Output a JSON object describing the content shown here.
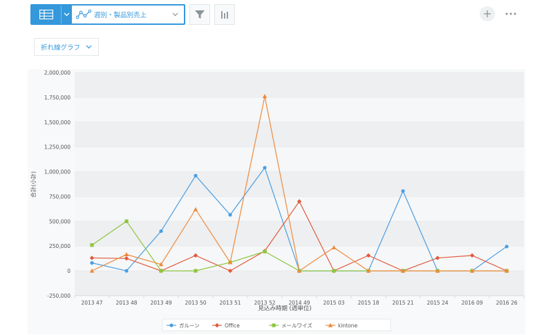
{
  "toolbar": {
    "report_name": "週別・製品別売上",
    "view_icon": "table-icon",
    "graph_icon": "line-graph-icon",
    "filter_icon": "filter-icon",
    "chart_icon": "bar-chart-icon"
  },
  "actions": {
    "add_icon": "plus-icon",
    "more_icon": "more-icon"
  },
  "chart_type_label": "折れ線グラフ",
  "chart_data": {
    "type": "line",
    "categories": [
      "2013 47",
      "2013 48",
      "2013 49",
      "2013 50",
      "2013 51",
      "2013 52",
      "2014 49",
      "2015 03",
      "2015 18",
      "2015 21",
      "2015 24",
      "2016 09",
      "2016 26"
    ],
    "xlabel": "見込み時期 (週単位)",
    "ylabel": "合計(小計)",
    "ylim": [
      -250000,
      2000000
    ],
    "yticks": [
      -250000,
      0,
      250000,
      500000,
      750000,
      1000000,
      1250000,
      1500000,
      1750000,
      2000000
    ],
    "ytick_labels": [
      "-250,000",
      "0",
      "250,000",
      "500,000",
      "750,000",
      "1,000,000",
      "1,250,000",
      "1,500,000",
      "1,750,000",
      "2,000,000"
    ],
    "grid": true,
    "legend_position": "bottom",
    "series": [
      {
        "name": "ガルーン",
        "color": "#4a9ee0",
        "marker": "circle",
        "values": [
          80000,
          0,
          400000,
          960000,
          565000,
          1040000,
          0,
          0,
          0,
          805000,
          0,
          0,
          245000
        ]
      },
      {
        "name": "Office",
        "color": "#e05a3c",
        "marker": "diamond",
        "values": [
          130000,
          125000,
          0,
          155000,
          0,
          200000,
          700000,
          0,
          155000,
          0,
          130000,
          155000,
          0
        ]
      },
      {
        "name": "メールワイズ",
        "color": "#8cc63f",
        "marker": "square",
        "values": [
          260000,
          500000,
          0,
          0,
          85000,
          195000,
          0,
          0,
          0,
          0,
          0,
          0,
          0
        ]
      },
      {
        "name": "kintone",
        "color": "#ee8a3c",
        "marker": "triangle",
        "values": [
          0,
          165000,
          65000,
          620000,
          85000,
          1760000,
          0,
          235000,
          0,
          0,
          0,
          0,
          0
        ]
      }
    ]
  }
}
